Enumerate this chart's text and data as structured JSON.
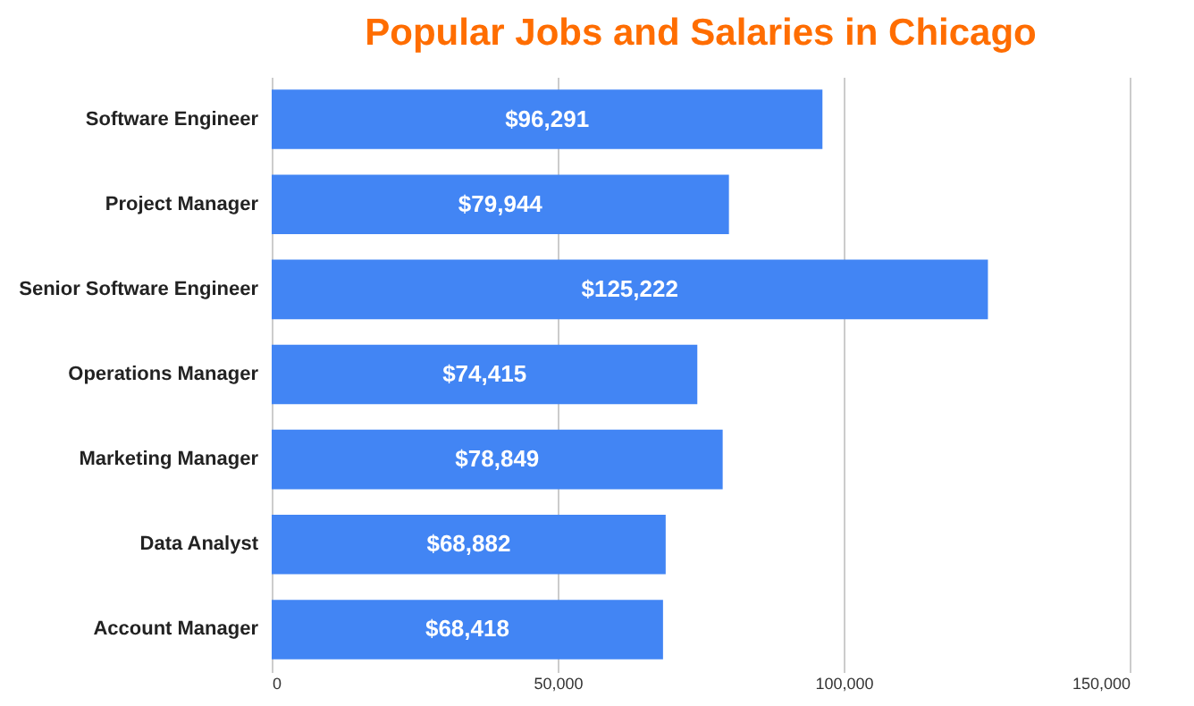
{
  "chart_data": {
    "type": "bar",
    "orientation": "horizontal",
    "title": "Popular Jobs and Salaries in Chicago",
    "categories": [
      "Software Engineer",
      "Project Manager",
      "Senior Software Engineer",
      "Operations Manager",
      "Marketing Manager",
      "Data Analyst",
      "Account Manager"
    ],
    "values": [
      96291,
      79944,
      125222,
      74415,
      78849,
      68882,
      68418
    ],
    "value_labels": [
      "$96,291",
      "$79,944",
      "$125,222",
      "$74,415",
      "$78,849",
      "$68,882",
      "$68,418"
    ],
    "color": "#4285f4",
    "xlim": [
      0,
      150000
    ],
    "xticks": [
      0,
      {
        "value": 50000,
        "label": "50,000"
      },
      {
        "value": 100000,
        "label": "100,000"
      },
      {
        "value": 150000,
        "label": "150,000"
      }
    ],
    "grid": "x"
  }
}
